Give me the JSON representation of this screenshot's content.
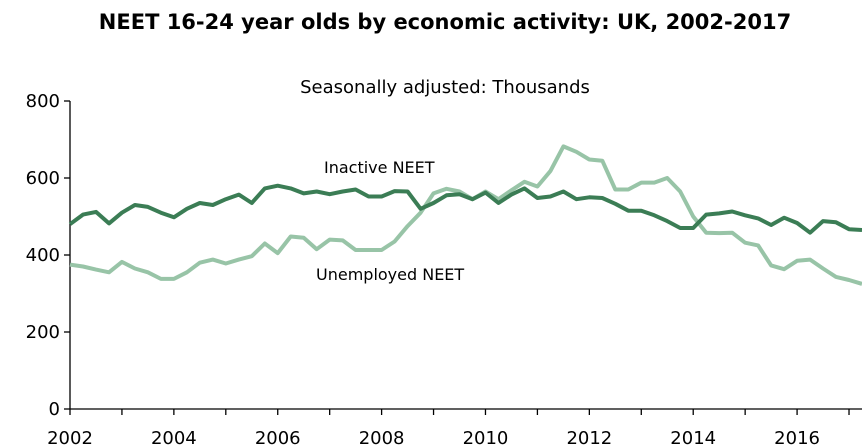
{
  "chart_data": {
    "type": "line",
    "title": "NEET 16-24 year olds by economic activity: UK, 2002-2017",
    "subtitle": "Seasonally adjusted: Thousands",
    "xlabel": "",
    "ylabel": "",
    "xlim": [
      2002,
      2017.25
    ],
    "ylim": [
      0,
      800
    ],
    "x_ticks": [
      "2002",
      "2004",
      "2006",
      "2008",
      "2010",
      "2012",
      "2014",
      "2016"
    ],
    "y_ticks": [
      "0",
      "200",
      "400",
      "600",
      "800"
    ],
    "grid": false,
    "legend": "none",
    "series": [
      {
        "name": "Inactive NEET",
        "color": "#3b7d55",
        "points": [
          [
            2002.0,
            480
          ],
          [
            2002.25,
            505
          ],
          [
            2002.5,
            512
          ],
          [
            2002.75,
            482
          ],
          [
            2003.0,
            510
          ],
          [
            2003.25,
            530
          ],
          [
            2003.5,
            525
          ],
          [
            2003.75,
            510
          ],
          [
            2004.0,
            498
          ],
          [
            2004.25,
            520
          ],
          [
            2004.5,
            535
          ],
          [
            2004.75,
            530
          ],
          [
            2005.0,
            545
          ],
          [
            2005.25,
            557
          ],
          [
            2005.5,
            535
          ],
          [
            2005.75,
            573
          ],
          [
            2006.0,
            580
          ],
          [
            2006.25,
            573
          ],
          [
            2006.5,
            560
          ],
          [
            2006.75,
            565
          ],
          [
            2007.0,
            558
          ],
          [
            2007.25,
            565
          ],
          [
            2007.5,
            570
          ],
          [
            2007.75,
            552
          ],
          [
            2008.0,
            552
          ],
          [
            2008.25,
            566
          ],
          [
            2008.5,
            565
          ],
          [
            2008.75,
            520
          ],
          [
            2009.0,
            535
          ],
          [
            2009.25,
            555
          ],
          [
            2009.5,
            558
          ],
          [
            2009.75,
            545
          ],
          [
            2010.0,
            562
          ],
          [
            2010.25,
            535
          ],
          [
            2010.5,
            557
          ],
          [
            2010.75,
            573
          ],
          [
            2011.0,
            548
          ],
          [
            2011.25,
            552
          ],
          [
            2011.5,
            565
          ],
          [
            2011.75,
            545
          ],
          [
            2012.0,
            550
          ],
          [
            2012.25,
            548
          ],
          [
            2012.5,
            533
          ],
          [
            2012.75,
            515
          ],
          [
            2013.0,
            515
          ],
          [
            2013.25,
            503
          ],
          [
            2013.5,
            488
          ],
          [
            2013.75,
            470
          ],
          [
            2014.0,
            470
          ],
          [
            2014.25,
            505
          ],
          [
            2014.5,
            508
          ],
          [
            2014.75,
            513
          ],
          [
            2015.0,
            503
          ],
          [
            2015.25,
            495
          ],
          [
            2015.5,
            478
          ],
          [
            2015.75,
            497
          ],
          [
            2016.0,
            483
          ],
          [
            2016.25,
            458
          ],
          [
            2016.5,
            488
          ],
          [
            2016.75,
            485
          ],
          [
            2017.0,
            467
          ],
          [
            2017.25,
            465
          ]
        ]
      },
      {
        "name": "Unemployed NEET",
        "color": "#98c4a7",
        "points": [
          [
            2002.0,
            375
          ],
          [
            2002.25,
            370
          ],
          [
            2002.5,
            362
          ],
          [
            2002.75,
            355
          ],
          [
            2003.0,
            382
          ],
          [
            2003.25,
            365
          ],
          [
            2003.5,
            355
          ],
          [
            2003.75,
            338
          ],
          [
            2004.0,
            338
          ],
          [
            2004.25,
            355
          ],
          [
            2004.5,
            380
          ],
          [
            2004.75,
            388
          ],
          [
            2005.0,
            378
          ],
          [
            2005.25,
            388
          ],
          [
            2005.5,
            397
          ],
          [
            2005.75,
            430
          ],
          [
            2006.0,
            405
          ],
          [
            2006.25,
            448
          ],
          [
            2006.5,
            445
          ],
          [
            2006.75,
            415
          ],
          [
            2007.0,
            440
          ],
          [
            2007.25,
            438
          ],
          [
            2007.5,
            413
          ],
          [
            2007.75,
            413
          ],
          [
            2008.0,
            413
          ],
          [
            2008.25,
            435
          ],
          [
            2008.5,
            475
          ],
          [
            2008.75,
            510
          ],
          [
            2009.0,
            560
          ],
          [
            2009.25,
            572
          ],
          [
            2009.5,
            565
          ],
          [
            2009.75,
            545
          ],
          [
            2010.0,
            565
          ],
          [
            2010.25,
            545
          ],
          [
            2010.5,
            568
          ],
          [
            2010.75,
            590
          ],
          [
            2011.0,
            578
          ],
          [
            2011.25,
            618
          ],
          [
            2011.5,
            682
          ],
          [
            2011.75,
            668
          ],
          [
            2012.0,
            648
          ],
          [
            2012.25,
            645
          ],
          [
            2012.5,
            570
          ],
          [
            2012.75,
            570
          ],
          [
            2013.0,
            588
          ],
          [
            2013.25,
            588
          ],
          [
            2013.5,
            600
          ],
          [
            2013.75,
            565
          ],
          [
            2014.0,
            500
          ],
          [
            2014.25,
            458
          ],
          [
            2014.5,
            457
          ],
          [
            2014.75,
            458
          ],
          [
            2015.0,
            432
          ],
          [
            2015.25,
            425
          ],
          [
            2015.5,
            373
          ],
          [
            2015.75,
            363
          ],
          [
            2016.0,
            385
          ],
          [
            2016.25,
            388
          ],
          [
            2016.5,
            365
          ],
          [
            2016.75,
            343
          ],
          [
            2017.0,
            335
          ],
          [
            2017.25,
            325
          ]
        ]
      }
    ],
    "annotations": [
      {
        "text": "Inactive NEET",
        "series": "Inactive NEET"
      },
      {
        "text": "Unemployed NEET",
        "series": "Unemployed NEET"
      }
    ]
  }
}
